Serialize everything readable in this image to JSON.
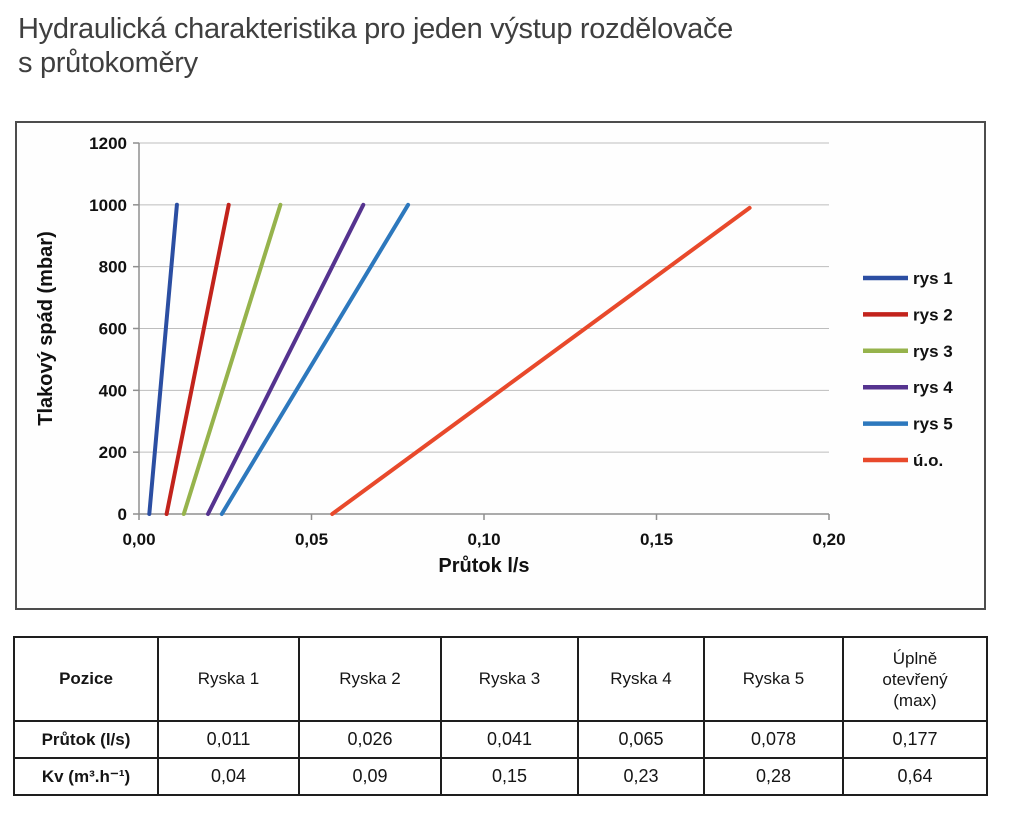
{
  "page": {
    "title_line1": "Hydraulická charakteristika pro jeden výstup rozdělovače",
    "title_line2": "s průtokoměry"
  },
  "chart_data": {
    "type": "line",
    "title": "",
    "xlabel": "Průtok l/s",
    "ylabel": "Tlakový spád (mbar)",
    "xlim": [
      0,
      0.2
    ],
    "ylim": [
      0,
      1200
    ],
    "x_ticks": [
      {
        "value": 0.0,
        "label": "0,00"
      },
      {
        "value": 0.05,
        "label": "0,05"
      },
      {
        "value": 0.1,
        "label": "0,10"
      },
      {
        "value": 0.15,
        "label": "0,15"
      },
      {
        "value": 0.2,
        "label": "0,20"
      }
    ],
    "y_ticks": [
      0,
      200,
      400,
      600,
      800,
      1000,
      1200
    ],
    "grid": true,
    "legend_position": "right",
    "colors": {
      "axis": "#8f8f8f",
      "grid": "#bdbdbd",
      "text": "#111111",
      "frame": "#4d4d4d"
    },
    "series": [
      {
        "name": "rys 1",
        "color": "#2b4ea2",
        "points": [
          [
            0.003,
            0
          ],
          [
            0.011,
            1000
          ]
        ]
      },
      {
        "name": "rys 2",
        "color": "#c2231c",
        "points": [
          [
            0.008,
            0
          ],
          [
            0.026,
            1000
          ]
        ]
      },
      {
        "name": "rys 3",
        "color": "#96b34c",
        "points": [
          [
            0.013,
            0
          ],
          [
            0.041,
            1000
          ]
        ]
      },
      {
        "name": "rys 4",
        "color": "#55338f",
        "points": [
          [
            0.02,
            0
          ],
          [
            0.065,
            1000
          ]
        ]
      },
      {
        "name": "rys 5",
        "color": "#2d78bd",
        "points": [
          [
            0.024,
            0
          ],
          [
            0.078,
            1000
          ]
        ]
      },
      {
        "name": "ú.o.",
        "color": "#e8492b",
        "points": [
          [
            0.056,
            0
          ],
          [
            0.177,
            990
          ]
        ]
      }
    ]
  },
  "table": {
    "headers": [
      "Pozice",
      "Ryska 1",
      "Ryska 2",
      "Ryska 3",
      "Ryska 4",
      "Ryska 5",
      "Úplně otevřený (max)"
    ],
    "rows": [
      {
        "label": "Průtok (l/s)",
        "values": [
          "0,011",
          "0,026",
          "0,041",
          "0,065",
          "0,078",
          "0,177"
        ]
      },
      {
        "label": "Kv (m³.h⁻¹)",
        "values": [
          "0,04",
          "0,09",
          "0,15",
          "0,23",
          "0,28",
          "0,64"
        ]
      }
    ]
  }
}
